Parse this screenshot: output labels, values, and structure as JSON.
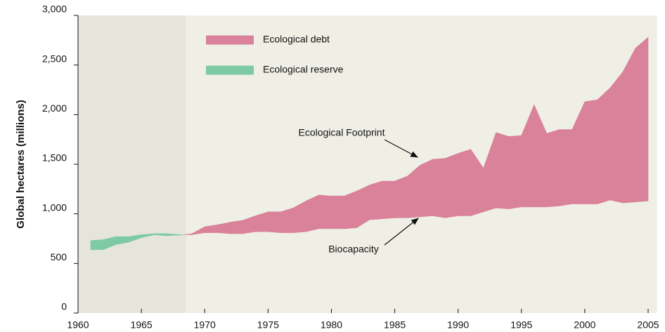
{
  "chart_data": {
    "type": "area-between",
    "y_label": "Global hectares (millions)",
    "x": [
      1961,
      1962,
      1963,
      1964,
      1965,
      1966,
      1967,
      1968,
      1969,
      1970,
      1971,
      1972,
      1973,
      1974,
      1975,
      1976,
      1977,
      1978,
      1979,
      1980,
      1981,
      1982,
      1983,
      1984,
      1985,
      1986,
      1987,
      1988,
      1989,
      1990,
      1991,
      1992,
      1993,
      1994,
      1995,
      1996,
      1997,
      1998,
      1999,
      2000,
      2001,
      2002,
      2003,
      2004,
      2005
    ],
    "series": [
      {
        "name": "Ecological Footprint",
        "values": [
          638,
          640,
          690,
          715,
          760,
          790,
          780,
          785,
          800,
          870,
          890,
          915,
          935,
          980,
          1020,
          1020,
          1060,
          1130,
          1190,
          1180,
          1180,
          1230,
          1290,
          1330,
          1330,
          1380,
          1490,
          1550,
          1560,
          1610,
          1650,
          1460,
          1820,
          1780,
          1790,
          2100,
          1810,
          1850,
          1850,
          2130,
          2150,
          2270,
          2430,
          2670,
          2780
        ]
      },
      {
        "name": "Biocapacity",
        "values": [
          730,
          740,
          770,
          770,
          790,
          800,
          800,
          790,
          790,
          810,
          810,
          800,
          800,
          820,
          820,
          810,
          810,
          820,
          850,
          850,
          850,
          860,
          940,
          950,
          960,
          960,
          970,
          980,
          960,
          980,
          980,
          1020,
          1060,
          1050,
          1070,
          1070,
          1070,
          1080,
          1100,
          1100,
          1100,
          1140,
          1110,
          1120,
          1130
        ]
      }
    ],
    "legend": [
      {
        "label": "Ecological debt",
        "color": "#d9829a"
      },
      {
        "label": "Ecological reserve",
        "color": "#7ecaa5"
      }
    ],
    "shade_xlim": [
      1960,
      1968.5
    ],
    "xlim": [
      1960,
      2005.7
    ],
    "xticks": [
      1960,
      1965,
      1970,
      1975,
      1980,
      1985,
      1990,
      1995,
      2000,
      2005
    ],
    "ylim": [
      0,
      3000
    ],
    "yticks": [
      0,
      500,
      {
        "value": 1000,
        "label": "1,000"
      },
      {
        "value": 1500,
        "label": "1,500"
      },
      {
        "value": 2000,
        "label": "2,000"
      },
      {
        "value": 2500,
        "label": "2,500"
      },
      {
        "value": 3000,
        "label": "3,000"
      }
    ]
  }
}
